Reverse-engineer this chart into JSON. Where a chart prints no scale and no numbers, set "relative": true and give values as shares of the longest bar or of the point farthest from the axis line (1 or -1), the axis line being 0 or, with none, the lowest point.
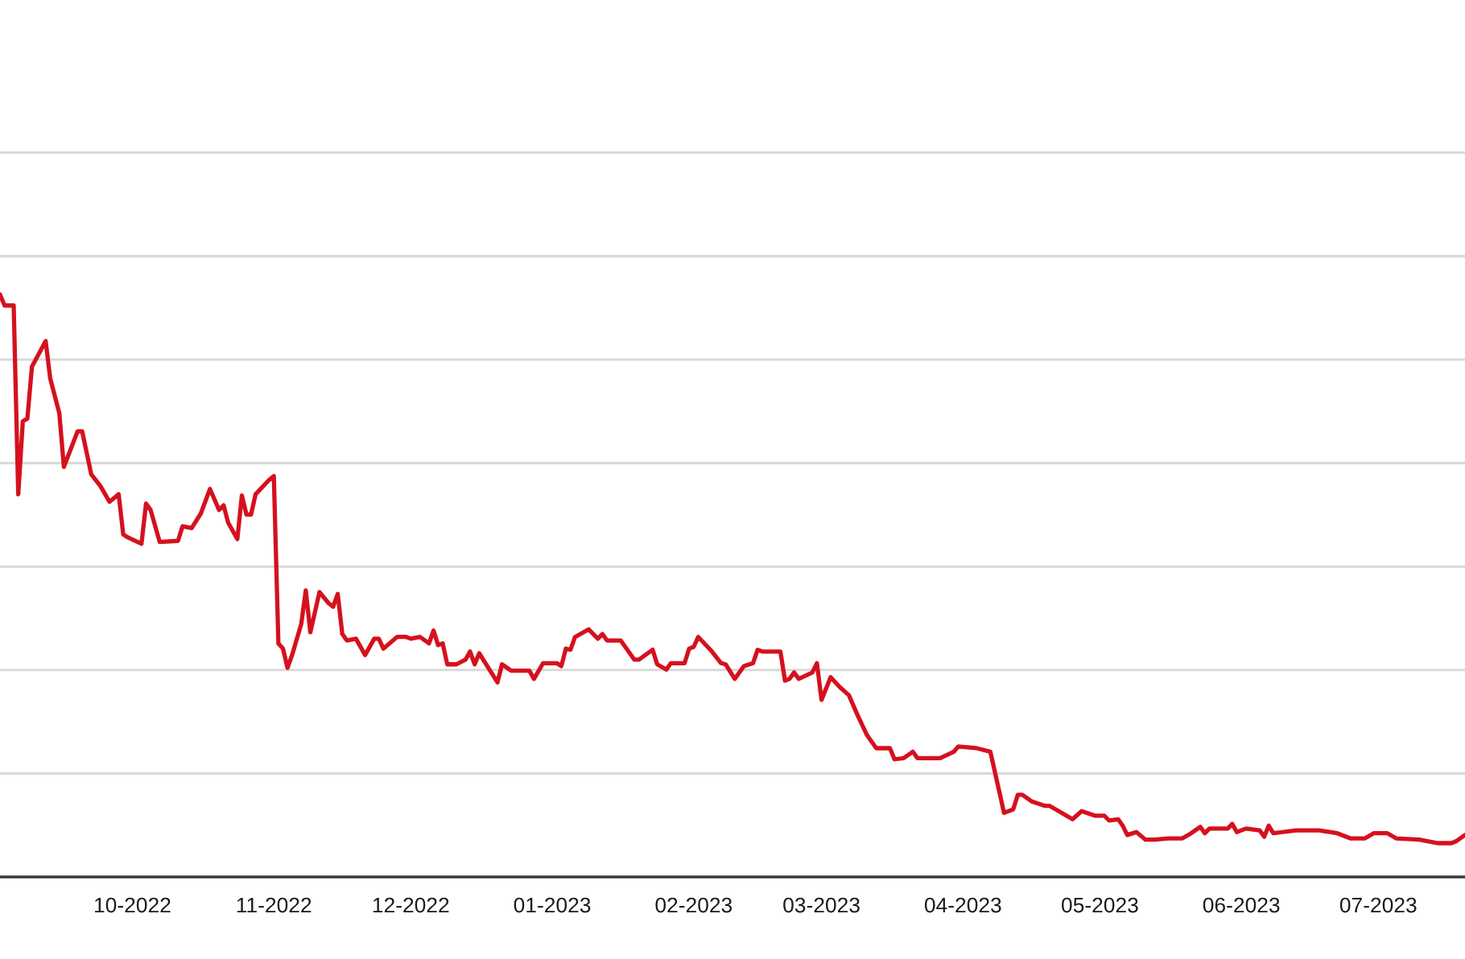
{
  "chart_data": {
    "type": "line",
    "relative": true,
    "grid": "y",
    "tick_labels": "x",
    "xlim": [
      "2022-09-02",
      "2023-07-20"
    ],
    "xticks": [
      {
        "value": "2022-10-01",
        "label": "10-2022"
      },
      {
        "value": "2022-11-01",
        "label": "11-2022"
      },
      {
        "value": "2022-12-01",
        "label": "12-2022"
      },
      {
        "value": "2023-01-01",
        "label": "01-2023"
      },
      {
        "value": "2023-02-01",
        "label": "02-2023"
      },
      {
        "value": "2023-03-01",
        "label": "03-2023"
      },
      {
        "value": "2023-04-01",
        "label": "04-2023"
      },
      {
        "value": "2023-05-01",
        "label": "05-2023"
      },
      {
        "value": "2023-06-01",
        "label": "06-2023"
      },
      {
        "value": "2023-07-01",
        "label": "07-2023"
      }
    ],
    "x": [
      "2022-09-02",
      "2022-09-03",
      "2022-09-05",
      "2022-09-06",
      "2022-09-07",
      "2022-09-08",
      "2022-09-09",
      "2022-09-12",
      "2022-09-13",
      "2022-09-15",
      "2022-09-16",
      "2022-09-19",
      "2022-09-20",
      "2022-09-22",
      "2022-09-24",
      "2022-09-26",
      "2022-09-28",
      "2022-09-29",
      "2022-09-30",
      "2022-10-03",
      "2022-10-04",
      "2022-10-05",
      "2022-10-07",
      "2022-10-11",
      "2022-10-12",
      "2022-10-14",
      "2022-10-16",
      "2022-10-18",
      "2022-10-20",
      "2022-10-21",
      "2022-10-22",
      "2022-10-24",
      "2022-10-25",
      "2022-10-26",
      "2022-10-27",
      "2022-10-28",
      "2022-10-31",
      "2022-11-01",
      "2022-11-02",
      "2022-11-03",
      "2022-11-04",
      "2022-11-05",
      "2022-11-07",
      "2022-11-08",
      "2022-11-09",
      "2022-11-11",
      "2022-11-13",
      "2022-11-14",
      "2022-11-15",
      "2022-11-16",
      "2022-11-17",
      "2022-11-19",
      "2022-11-21",
      "2022-11-23",
      "2022-11-24",
      "2022-11-25",
      "2022-11-28",
      "2022-11-30",
      "2022-12-01",
      "2022-12-03",
      "2022-12-05",
      "2022-12-06",
      "2022-12-07",
      "2022-12-08",
      "2022-12-09",
      "2022-12-11",
      "2022-12-13",
      "2022-12-14",
      "2022-12-15",
      "2022-12-16",
      "2022-12-20",
      "2022-12-21",
      "2022-12-23",
      "2022-12-27",
      "2022-12-28",
      "2022-12-30",
      "2023-01-02",
      "2023-01-03",
      "2023-01-04",
      "2023-01-05",
      "2023-01-06",
      "2023-01-09",
      "2023-01-11",
      "2023-01-12",
      "2023-01-13",
      "2023-01-16",
      "2023-01-19",
      "2023-01-20",
      "2023-01-23",
      "2023-01-24",
      "2023-01-26",
      "2023-01-27",
      "2023-01-30",
      "2023-01-31",
      "2023-02-01",
      "2023-02-02",
      "2023-02-05",
      "2023-02-07",
      "2023-02-08",
      "2023-02-10",
      "2023-02-12",
      "2023-02-14",
      "2023-02-15",
      "2023-02-16",
      "2023-02-20",
      "2023-02-21",
      "2023-02-22",
      "2023-02-23",
      "2023-02-24",
      "2023-02-27",
      "2023-02-28",
      "2023-03-01",
      "2023-03-03",
      "2023-03-05",
      "2023-03-07",
      "2023-03-09",
      "2023-03-11",
      "2023-03-13",
      "2023-03-16",
      "2023-03-17",
      "2023-03-19",
      "2023-03-21",
      "2023-03-22",
      "2023-03-27",
      "2023-03-30",
      "2023-03-31",
      "2023-04-04",
      "2023-04-07",
      "2023-04-10",
      "2023-04-12",
      "2023-04-13",
      "2023-04-14",
      "2023-04-16",
      "2023-04-19",
      "2023-04-20",
      "2023-04-22",
      "2023-04-25",
      "2023-04-27",
      "2023-04-30",
      "2023-05-02",
      "2023-05-03",
      "2023-05-05",
      "2023-05-06",
      "2023-05-07",
      "2023-05-09",
      "2023-05-11",
      "2023-05-13",
      "2023-05-16",
      "2023-05-19",
      "2023-05-21",
      "2023-05-23",
      "2023-05-24",
      "2023-05-25",
      "2023-05-29",
      "2023-05-30",
      "2023-05-31",
      "2023-06-02",
      "2023-06-05",
      "2023-06-06",
      "2023-06-07",
      "2023-06-08",
      "2023-06-10",
      "2023-06-13",
      "2023-06-18",
      "2023-06-22",
      "2023-06-25",
      "2023-06-28",
      "2023-06-30",
      "2023-07-03",
      "2023-07-05",
      "2023-07-10",
      "2023-07-14",
      "2023-07-17",
      "2023-07-18",
      "2023-07-20"
    ],
    "series": [
      {
        "color": "#d5111e",
        "values": [
          1.0,
          0.981,
          0.981,
          0.657,
          0.782,
          0.787,
          0.876,
          0.92,
          0.856,
          0.796,
          0.704,
          0.765,
          0.765,
          0.691,
          0.671,
          0.644,
          0.657,
          0.588,
          0.583,
          0.572,
          0.641,
          0.63,
          0.575,
          0.577,
          0.602,
          0.599,
          0.624,
          0.666,
          0.63,
          0.638,
          0.608,
          0.58,
          0.655,
          0.622,
          0.622,
          0.657,
          0.682,
          0.688,
          0.401,
          0.392,
          0.359,
          0.381,
          0.434,
          0.492,
          0.42,
          0.489,
          0.47,
          0.464,
          0.486,
          0.417,
          0.406,
          0.409,
          0.381,
          0.409,
          0.409,
          0.392,
          0.412,
          0.412,
          0.409,
          0.412,
          0.401,
          0.423,
          0.398,
          0.401,
          0.365,
          0.365,
          0.373,
          0.387,
          0.365,
          0.384,
          0.334,
          0.365,
          0.354,
          0.354,
          0.34,
          0.367,
          0.367,
          0.362,
          0.392,
          0.39,
          0.412,
          0.425,
          0.409,
          0.417,
          0.406,
          0.406,
          0.373,
          0.373,
          0.39,
          0.365,
          0.356,
          0.367,
          0.367,
          0.392,
          0.395,
          0.412,
          0.387,
          0.367,
          0.365,
          0.34,
          0.362,
          0.367,
          0.39,
          0.387,
          0.387,
          0.337,
          0.34,
          0.351,
          0.34,
          0.351,
          0.367,
          0.304,
          0.343,
          0.326,
          0.312,
          0.276,
          0.243,
          0.221,
          0.221,
          0.202,
          0.204,
          0.215,
          0.204,
          0.204,
          0.215,
          0.224,
          0.221,
          0.215,
          0.11,
          0.116,
          0.141,
          0.141,
          0.13,
          0.122,
          0.122,
          0.113,
          0.099,
          0.113,
          0.105,
          0.105,
          0.097,
          0.099,
          0.088,
          0.072,
          0.077,
          0.064,
          0.064,
          0.066,
          0.066,
          0.075,
          0.086,
          0.075,
          0.083,
          0.083,
          0.091,
          0.077,
          0.083,
          0.08,
          0.069,
          0.088,
          0.075,
          0.077,
          0.08,
          0.08,
          0.075,
          0.066,
          0.066,
          0.075,
          0.075,
          0.066,
          0.064,
          0.058,
          0.058,
          0.061,
          0.072
        ]
      }
    ]
  }
}
